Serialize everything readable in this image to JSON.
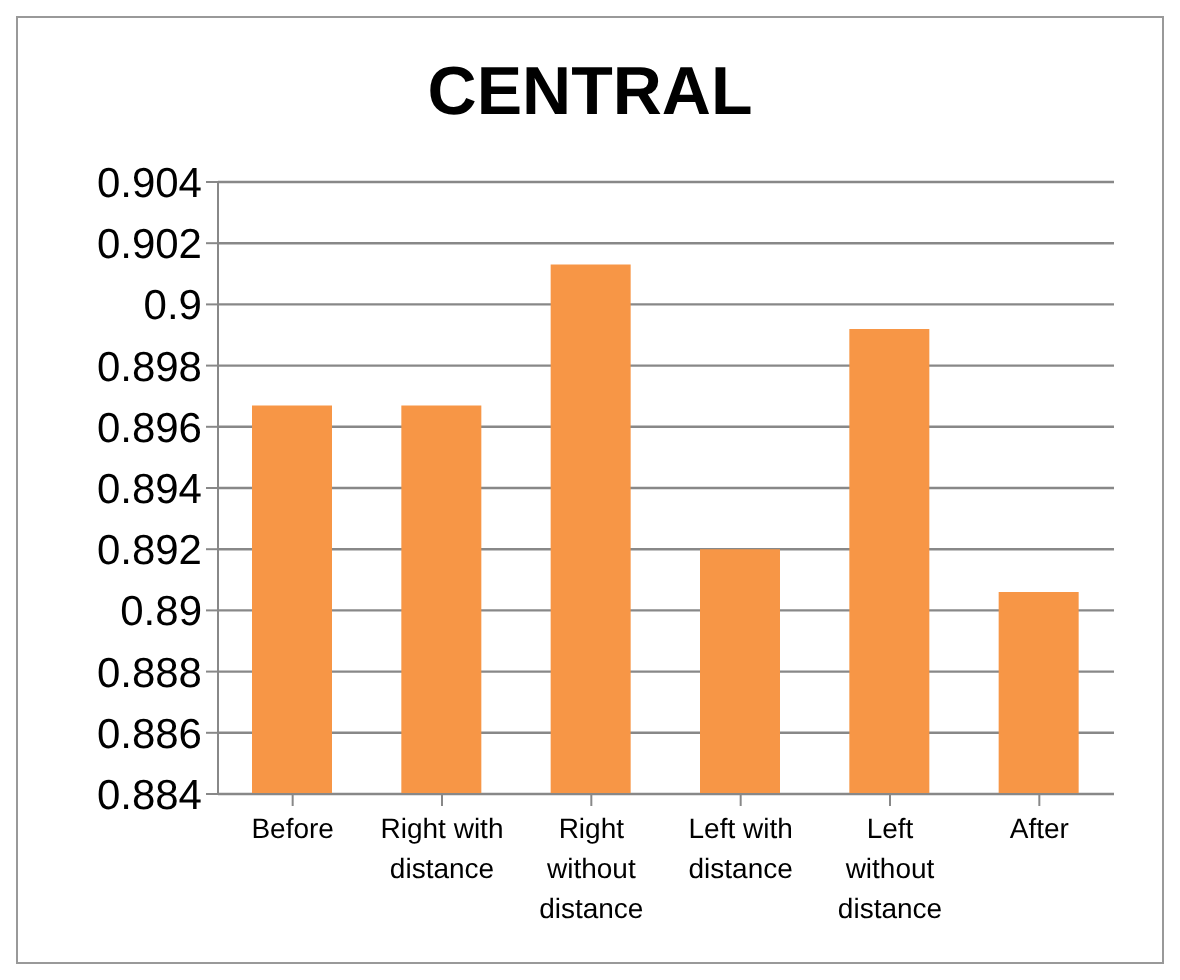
{
  "chart_data": {
    "type": "bar",
    "title": "CENTRAL",
    "categories": [
      "Before",
      "Right with distance",
      "Right without distance",
      "Left with distance",
      "Left without distance",
      "After"
    ],
    "values": [
      0.8967,
      0.8967,
      0.9013,
      0.892,
      0.8992,
      0.8906
    ],
    "color": "#f79646",
    "ylim": [
      0.884,
      0.904
    ],
    "yticks": [
      0.884,
      0.886,
      0.888,
      0.89,
      0.892,
      0.894,
      0.896,
      0.898,
      0.9,
      0.902,
      0.904
    ],
    "grid": "y"
  }
}
